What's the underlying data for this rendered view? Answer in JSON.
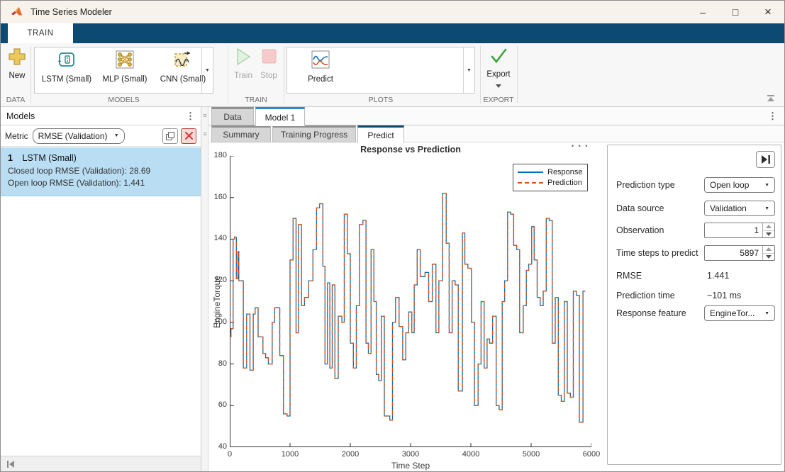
{
  "window": {
    "title": "Time Series Modeler",
    "minimize": "–",
    "maximize": "□",
    "close": "×"
  },
  "icons": {
    "kebab": "⋮",
    "grip": "≡",
    "ellipsis": "• • •",
    "gallery_caret": "▼",
    "dd_caret": "▼"
  },
  "colors": {
    "ribbon_bar": "#0c4a73",
    "doc_tab_accent": "#2e8ac6",
    "sub_tab_accent": "#0b4970",
    "selection": "#b9ddf3",
    "response_line": "#0072BD",
    "prediction_line": "#D95319",
    "delete_accent": "#d23b3b",
    "export_check": "#3fa33f"
  },
  "ribbon": {
    "tab_label": "TRAIN",
    "sections": [
      {
        "name": "DATA",
        "items": [
          {
            "label": "New",
            "icon": "plus-icon"
          }
        ]
      },
      {
        "name": "MODELS",
        "items": [
          {
            "label": "LSTM (Small)",
            "icon": "lstm-icon"
          },
          {
            "label": "MLP (Small)",
            "icon": "mlp-icon"
          },
          {
            "label": "CNN (Small)",
            "icon": "cnn-icon"
          }
        ]
      },
      {
        "name": "TRAIN",
        "items": [
          {
            "label": "Train",
            "icon": "play-icon",
            "disabled": true
          },
          {
            "label": "Stop",
            "icon": "stop-icon",
            "disabled": true
          }
        ]
      },
      {
        "name": "PLOTS",
        "items": [
          {
            "label": "Predict",
            "icon": "predict-plot-icon"
          }
        ]
      },
      {
        "name": "EXPORT",
        "items": [
          {
            "label": "Export",
            "icon": "check-icon"
          }
        ]
      }
    ]
  },
  "models_panel": {
    "title": "Models",
    "metric_label": "Metric",
    "metric_value": "RMSE (Validation)",
    "items": [
      {
        "index": "1",
        "name": "LSTM (Small)",
        "metric1": "Closed loop RMSE (Validation): 28.69",
        "metric2": "Open loop RMSE (Validation): 1.441"
      }
    ]
  },
  "doc_tabs": [
    {
      "label": "Data"
    },
    {
      "label": "Model 1",
      "active": true
    }
  ],
  "sub_tabs": [
    {
      "label": "Summary"
    },
    {
      "label": "Training Progress"
    },
    {
      "label": "Predict",
      "active": true
    }
  ],
  "chart_data": {
    "type": "line",
    "title": "Response vs Prediction",
    "xlabel": "Time Step",
    "ylabel": "EngineTorque",
    "xlim": [
      0,
      6000
    ],
    "ylim": [
      40,
      180
    ],
    "xticks": [
      0,
      1000,
      2000,
      3000,
      4000,
      5000,
      6000
    ],
    "yticks": [
      40,
      60,
      80,
      100,
      120,
      140,
      160,
      180
    ],
    "grid": false,
    "legend_position": "top-right",
    "series": [
      {
        "name": "Response",
        "style": "solid",
        "color": "#0072BD"
      },
      {
        "name": "Prediction",
        "style": "dashed",
        "color": "#D95319"
      }
    ],
    "steps": [
      [
        0,
        93
      ],
      [
        20,
        97
      ],
      [
        55,
        140
      ],
      [
        80,
        141
      ],
      [
        110,
        121
      ],
      [
        135,
        134
      ],
      [
        150,
        120
      ],
      [
        225,
        78
      ],
      [
        280,
        104
      ],
      [
        335,
        77
      ],
      [
        390,
        104
      ],
      [
        420,
        107
      ],
      [
        470,
        93
      ],
      [
        550,
        85
      ],
      [
        595,
        83
      ],
      [
        640,
        80
      ],
      [
        705,
        100
      ],
      [
        745,
        107
      ],
      [
        830,
        84
      ],
      [
        890,
        56
      ],
      [
        950,
        55
      ],
      [
        1000,
        130
      ],
      [
        1050,
        150
      ],
      [
        1100,
        95
      ],
      [
        1140,
        147
      ],
      [
        1190,
        108
      ],
      [
        1240,
        112
      ],
      [
        1310,
        120
      ],
      [
        1380,
        135
      ],
      [
        1440,
        155
      ],
      [
        1490,
        157
      ],
      [
        1545,
        127
      ],
      [
        1580,
        80
      ],
      [
        1620,
        119
      ],
      [
        1660,
        78
      ],
      [
        1700,
        118
      ],
      [
        1745,
        73
      ],
      [
        1800,
        103
      ],
      [
        1860,
        100
      ],
      [
        1900,
        152
      ],
      [
        1950,
        133
      ],
      [
        2000,
        90
      ],
      [
        2050,
        78
      ],
      [
        2100,
        108
      ],
      [
        2150,
        147
      ],
      [
        2210,
        149
      ],
      [
        2260,
        90
      ],
      [
        2300,
        85
      ],
      [
        2345,
        135
      ],
      [
        2390,
        110
      ],
      [
        2430,
        75
      ],
      [
        2470,
        72
      ],
      [
        2515,
        103
      ],
      [
        2565,
        55
      ],
      [
        2655,
        53
      ],
      [
        2700,
        100
      ],
      [
        2750,
        112
      ],
      [
        2810,
        98
      ],
      [
        2870,
        82
      ],
      [
        2920,
        95
      ],
      [
        2970,
        105
      ],
      [
        3020,
        95
      ],
      [
        3060,
        118
      ],
      [
        3110,
        135
      ],
      [
        3160,
        122
      ],
      [
        3240,
        124
      ],
      [
        3300,
        110
      ],
      [
        3360,
        128
      ],
      [
        3420,
        95
      ],
      [
        3470,
        120
      ],
      [
        3530,
        162
      ],
      [
        3590,
        138
      ],
      [
        3640,
        95
      ],
      [
        3690,
        120
      ],
      [
        3740,
        118
      ],
      [
        3790,
        67
      ],
      [
        3860,
        143
      ],
      [
        3900,
        128
      ],
      [
        3950,
        126
      ],
      [
        4010,
        100
      ],
      [
        4060,
        60
      ],
      [
        4120,
        80
      ],
      [
        4170,
        110
      ],
      [
        4220,
        78
      ],
      [
        4270,
        92
      ],
      [
        4310,
        90
      ],
      [
        4360,
        103
      ],
      [
        4420,
        60
      ],
      [
        4470,
        58
      ],
      [
        4520,
        110
      ],
      [
        4560,
        120
      ],
      [
        4610,
        153
      ],
      [
        4660,
        152
      ],
      [
        4710,
        137
      ],
      [
        4760,
        135
      ],
      [
        4810,
        95
      ],
      [
        4870,
        108
      ],
      [
        4920,
        125
      ],
      [
        4960,
        128
      ],
      [
        5010,
        146
      ],
      [
        5050,
        130
      ],
      [
        5100,
        112
      ],
      [
        5150,
        108
      ],
      [
        5200,
        115
      ],
      [
        5250,
        150
      ],
      [
        5300,
        149
      ],
      [
        5350,
        90
      ],
      [
        5400,
        112
      ],
      [
        5450,
        65
      ],
      [
        5500,
        62
      ],
      [
        5550,
        110
      ],
      [
        5600,
        66
      ],
      [
        5650,
        64
      ],
      [
        5700,
        115
      ],
      [
        5750,
        113
      ],
      [
        5800,
        52
      ],
      [
        5860,
        115
      ],
      [
        5897,
        115
      ]
    ]
  },
  "predict_panel": {
    "rows": [
      {
        "label": "Prediction type",
        "control": "dropdown",
        "value": "Open loop"
      },
      {
        "label": "Data source",
        "control": "dropdown",
        "value": "Validation"
      },
      {
        "label": "Observation",
        "control": "spinner",
        "value": "1"
      },
      {
        "label": "Time steps to predict",
        "control": "spinner",
        "value": "5897"
      },
      {
        "label": "RMSE",
        "control": "text",
        "value": "1.441"
      },
      {
        "label": "Prediction time",
        "control": "text",
        "value": "~101 ms"
      },
      {
        "label": "Response feature",
        "control": "dropdown",
        "value": "EngineTor..."
      }
    ]
  }
}
